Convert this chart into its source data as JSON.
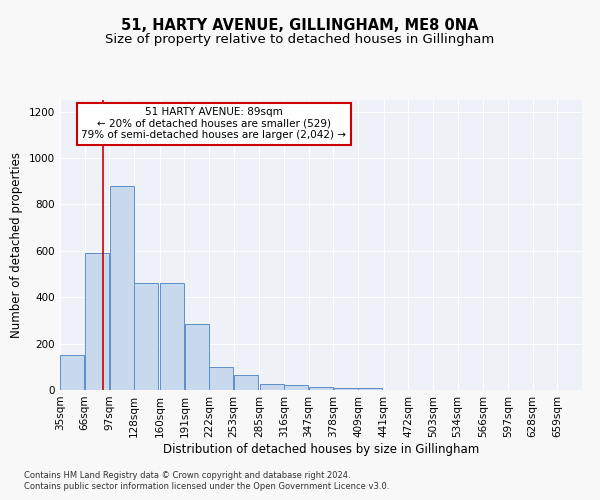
{
  "title": "51, HARTY AVENUE, GILLINGHAM, ME8 0NA",
  "subtitle": "Size of property relative to detached houses in Gillingham",
  "xlabel": "Distribution of detached houses by size in Gillingham",
  "ylabel": "Number of detached properties",
  "footnote1": "Contains HM Land Registry data © Crown copyright and database right 2024.",
  "footnote2": "Contains public sector information licensed under the Open Government Licence v3.0.",
  "annotation_title": "51 HARTY AVENUE: 89sqm",
  "annotation_line1": "← 20% of detached houses are smaller (529)",
  "annotation_line2": "79% of semi-detached houses are larger (2,042) →",
  "bar_color": "#c9d9ed",
  "bar_edge_color": "#5b8fc9",
  "red_line_x": 89,
  "annotation_box_color": "#ffffff",
  "annotation_box_edge": "#cc0000",
  "categories": [
    "35sqm",
    "66sqm",
    "97sqm",
    "128sqm",
    "160sqm",
    "191sqm",
    "222sqm",
    "253sqm",
    "285sqm",
    "316sqm",
    "347sqm",
    "378sqm",
    "409sqm",
    "441sqm",
    "472sqm",
    "503sqm",
    "534sqm",
    "566sqm",
    "597sqm",
    "628sqm",
    "659sqm"
  ],
  "bin_starts": [
    35,
    66,
    97,
    128,
    160,
    191,
    222,
    253,
    285,
    316,
    347,
    378,
    409,
    441,
    472,
    503,
    534,
    566,
    597,
    628,
    659
  ],
  "bin_width": 31,
  "values": [
    150,
    590,
    880,
    460,
    460,
    285,
    100,
    65,
    25,
    20,
    12,
    10,
    10,
    0,
    0,
    0,
    0,
    0,
    0,
    0,
    0
  ],
  "ylim": [
    0,
    1250
  ],
  "yticks": [
    0,
    200,
    400,
    600,
    800,
    1000,
    1200
  ],
  "bg_color": "#eef2f8",
  "grid_color": "#ffffff",
  "fig_bg_color": "#f8f8f8",
  "title_fontsize": 10.5,
  "subtitle_fontsize": 9.5,
  "axis_label_fontsize": 8.5,
  "tick_fontsize": 7.5,
  "footnote_fontsize": 6.0
}
